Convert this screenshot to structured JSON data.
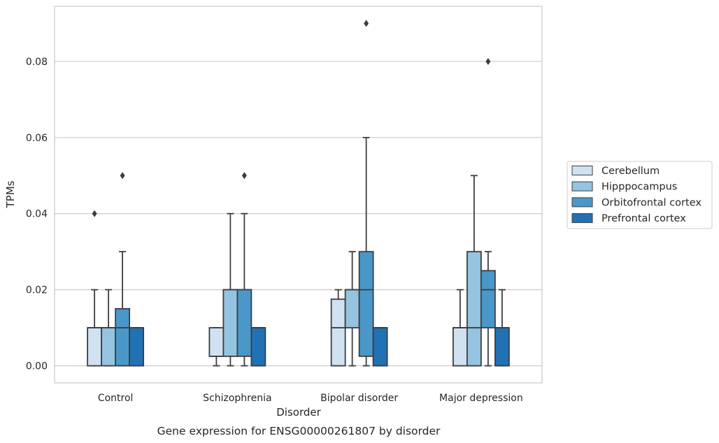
{
  "chart_data": {
    "type": "box",
    "title": "",
    "caption": "Gene expression for ENSG00000261807 by disorder",
    "xlabel": "Disorder",
    "ylabel": "TPMs",
    "ylim": [
      -0.0045,
      0.0945
    ],
    "yticks": [
      "0.00",
      "0.02",
      "0.04",
      "0.06",
      "0.08"
    ],
    "ytick_values": [
      0,
      0.02,
      0.04,
      0.06,
      0.08
    ],
    "grid": "horizontal",
    "legend_position": "right",
    "categories": [
      "Control",
      "Schizophrenia",
      "Bipolar disorder",
      "Major depression"
    ],
    "series": [
      {
        "name": "Cerebellum",
        "color": "#d0e1f2",
        "boxes": [
          {
            "whislo": 0,
            "q1": 0,
            "med": 0.01,
            "q3": 0.01,
            "whishi": 0.02,
            "fliers": [
              0.04
            ]
          },
          {
            "whislo": 0,
            "q1": 0.0025,
            "med": 0.0025,
            "q3": 0.01,
            "whishi": 0.01,
            "fliers": []
          },
          {
            "whislo": 0,
            "q1": 0,
            "med": 0.01,
            "q3": 0.0175,
            "whishi": 0.02,
            "fliers": []
          },
          {
            "whislo": 0,
            "q1": 0,
            "med": 0.01,
            "q3": 0.01,
            "whishi": 0.02,
            "fliers": []
          }
        ]
      },
      {
        "name": "Hipppocampus",
        "color": "#94c4df",
        "boxes": [
          {
            "whislo": 0,
            "q1": 0,
            "med": 0.01,
            "q3": 0.01,
            "whishi": 0.02,
            "fliers": []
          },
          {
            "whislo": 0,
            "q1": 0.0025,
            "med": 0.02,
            "q3": 0.02,
            "whishi": 0.04,
            "fliers": []
          },
          {
            "whislo": 0,
            "q1": 0.01,
            "med": 0.02,
            "q3": 0.02,
            "whishi": 0.03,
            "fliers": []
          },
          {
            "whislo": 0,
            "q1": 0,
            "med": 0.01,
            "q3": 0.03,
            "whishi": 0.05,
            "fliers": []
          }
        ]
      },
      {
        "name": "Orbitofrontal cortex",
        "color": "#4a98c9",
        "boxes": [
          {
            "whislo": 0,
            "q1": 0,
            "med": 0.01,
            "q3": 0.015,
            "whishi": 0.03,
            "fliers": [
              0.05
            ]
          },
          {
            "whislo": 0,
            "q1": 0.0025,
            "med": 0.02,
            "q3": 0.02,
            "whishi": 0.04,
            "fliers": [
              0.05
            ]
          },
          {
            "whislo": 0,
            "q1": 0.0025,
            "med": 0.02,
            "q3": 0.03,
            "whishi": 0.06,
            "fliers": [
              0.09
            ]
          },
          {
            "whislo": 0,
            "q1": 0.01,
            "med": 0.02,
            "q3": 0.025,
            "whishi": 0.03,
            "fliers": [
              0.08
            ]
          }
        ]
      },
      {
        "name": "Prefrontal cortex",
        "color": "#2171b5",
        "boxes": [
          {
            "whislo": 0,
            "q1": 0,
            "med": 0.01,
            "q3": 0.01,
            "whishi": 0.01,
            "fliers": []
          },
          {
            "whislo": 0,
            "q1": 0,
            "med": 0.01,
            "q3": 0.01,
            "whishi": 0.01,
            "fliers": []
          },
          {
            "whislo": 0,
            "q1": 0,
            "med": 0.01,
            "q3": 0.01,
            "whishi": 0.01,
            "fliers": []
          },
          {
            "whislo": 0,
            "q1": 0,
            "med": 0.01,
            "q3": 0.01,
            "whishi": 0.02,
            "fliers": []
          }
        ]
      }
    ]
  }
}
